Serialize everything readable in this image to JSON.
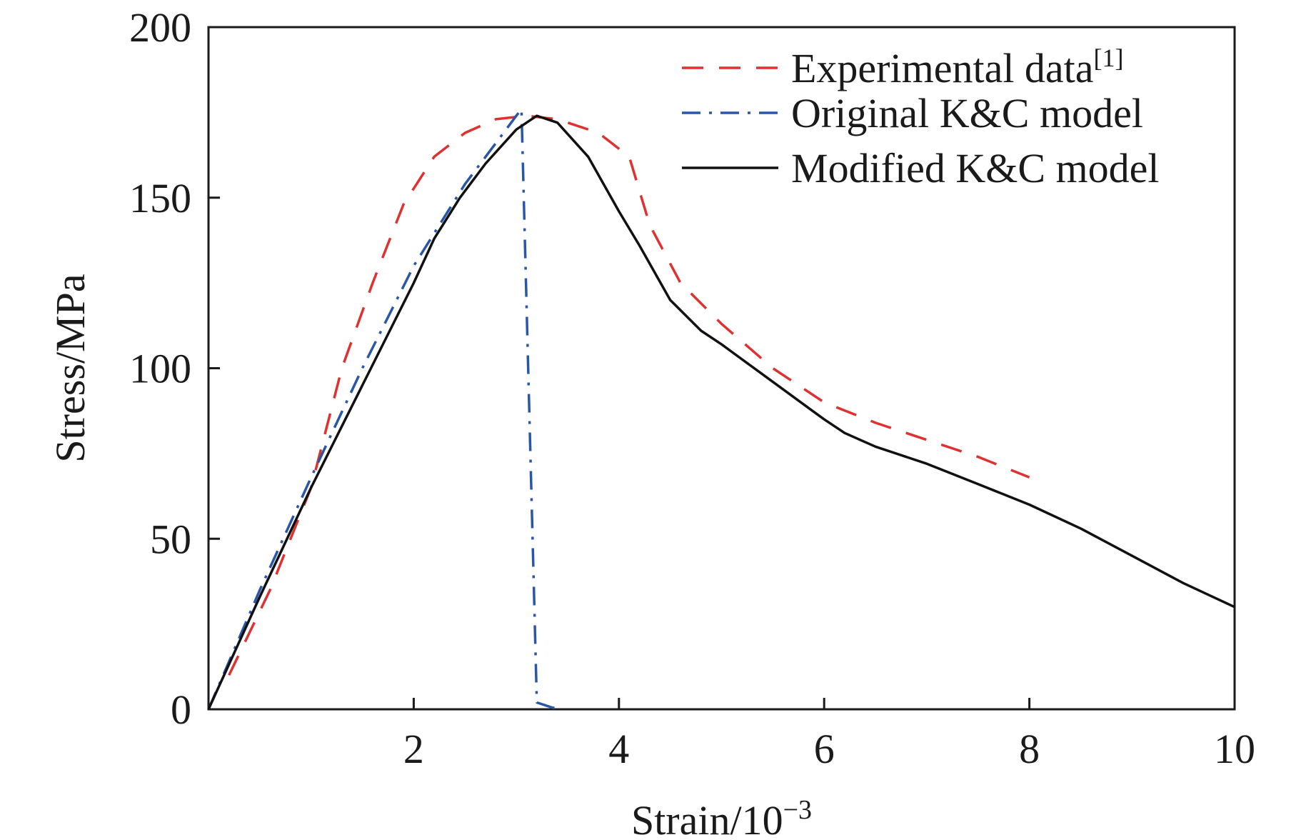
{
  "chart_data": {
    "type": "line",
    "xlabel": "Strain/10",
    "xlabel_superscript": "−3",
    "ylabel": "Stress/MPa",
    "xlim": [
      0,
      10
    ],
    "ylim": [
      0,
      200
    ],
    "x_ticks": [
      2,
      4,
      6,
      8,
      10
    ],
    "x_tick_labels": [
      "2",
      "4",
      "6",
      "8",
      "10"
    ],
    "y_ticks": [
      0,
      50,
      100,
      150,
      200
    ],
    "y_tick_labels": [
      "0",
      "50",
      "100",
      "150",
      "200"
    ],
    "legend_position": "top-right",
    "series": [
      {
        "name": "Experimental data",
        "name_superscript": "[1]",
        "color": "#e03131",
        "style": "dashed",
        "x": [
          0.2,
          0.6,
          1.0,
          1.3,
          1.6,
          1.9,
          2.2,
          2.5,
          2.8,
          3.1,
          3.4,
          3.8,
          4.1,
          4.3,
          4.6,
          5.0,
          5.5,
          6.0,
          6.5,
          7.0,
          7.5,
          8.0
        ],
        "y": [
          10,
          35,
          65,
          100,
          125,
          148,
          162,
          169,
          173,
          174,
          173,
          169,
          162,
          142,
          125,
          113,
          100,
          90,
          84,
          79,
          74,
          68
        ]
      },
      {
        "name": "Original K&C model",
        "color": "#2a56a8",
        "style": "dashdot",
        "x": [
          0.0,
          0.5,
          1.0,
          1.5,
          2.0,
          2.5,
          2.8,
          3.0,
          3.05,
          3.2,
          3.35,
          3.45
        ],
        "y": [
          0,
          35,
          68,
          100,
          130,
          154,
          166,
          174,
          176,
          2,
          0.5,
          0
        ]
      },
      {
        "name": "Modified K&C model",
        "color": "#111111",
        "style": "solid",
        "x": [
          0.0,
          0.5,
          1.0,
          1.5,
          2.0,
          2.2,
          2.45,
          2.7,
          3.0,
          3.2,
          3.4,
          3.7,
          4.0,
          4.2,
          4.5,
          4.8,
          5.0,
          5.5,
          6.0,
          6.2,
          6.5,
          7.0,
          7.5,
          8.0,
          8.5,
          9.0,
          9.5,
          10.0
        ],
        "y": [
          0,
          33,
          65,
          95,
          125,
          138,
          150,
          160,
          170,
          174,
          172,
          162,
          146,
          136,
          120,
          111,
          107,
          96,
          85,
          81,
          77,
          72,
          66,
          60,
          53,
          45,
          37,
          30
        ]
      }
    ]
  }
}
